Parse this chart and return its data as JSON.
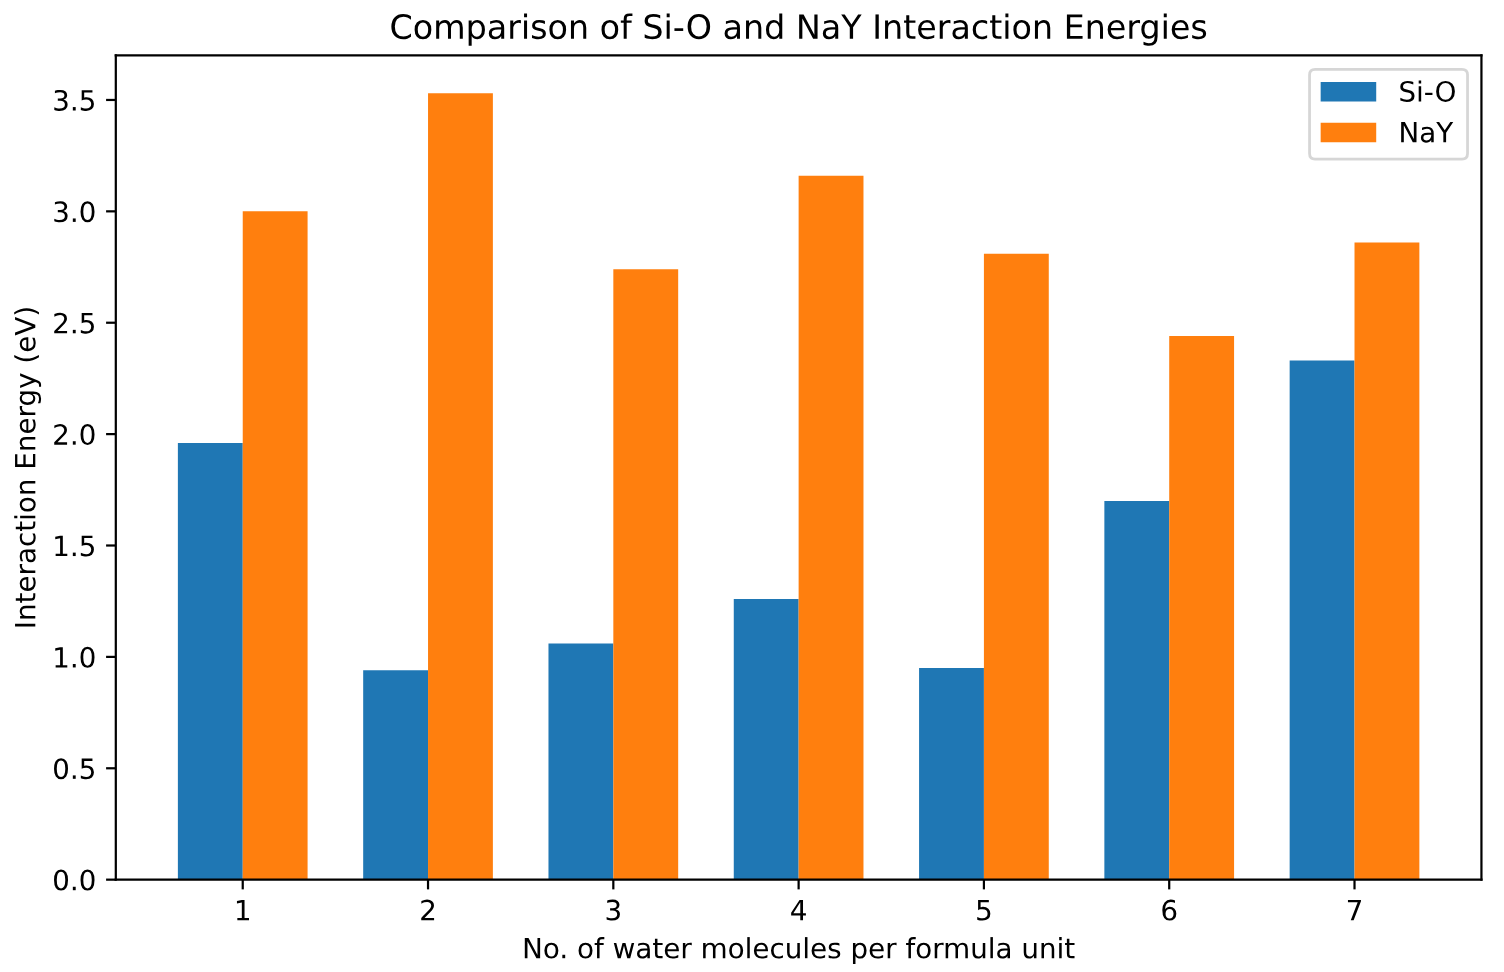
{
  "chart_data": {
    "type": "bar",
    "title": "Comparison of Si-O and NaY Interaction Energies",
    "xlabel": "No. of water molecules per formula unit",
    "ylabel": "Interaction Energy (eV)",
    "categories": [
      "1",
      "2",
      "3",
      "4",
      "5",
      "6",
      "7"
    ],
    "series": [
      {
        "name": "Si-O",
        "color": "#1f77b4",
        "values": [
          1.96,
          0.94,
          1.06,
          1.26,
          0.95,
          1.7,
          2.33
        ]
      },
      {
        "name": "NaY",
        "color": "#ff7f0e",
        "values": [
          3.0,
          3.53,
          2.74,
          3.16,
          2.81,
          2.44,
          2.86
        ]
      }
    ],
    "ylim": [
      0,
      3.7
    ],
    "yticks": [
      {
        "value": 0,
        "label": "0.0"
      },
      {
        "value": 0.5,
        "label": "0.5"
      },
      {
        "value": 1,
        "label": "1.0"
      },
      {
        "value": 1.5,
        "label": "1.5"
      },
      {
        "value": 2,
        "label": "2.0"
      },
      {
        "value": 2.5,
        "label": "2.5"
      },
      {
        "value": 3,
        "label": "3.0"
      },
      {
        "value": 3.5,
        "label": "3.5"
      }
    ],
    "legend": "top right",
    "grid": false
  }
}
